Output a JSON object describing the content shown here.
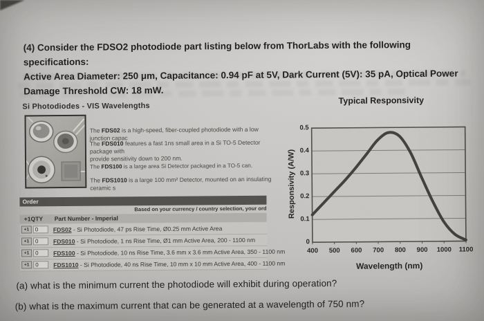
{
  "page": {
    "intro_lines": [
      "(4) Consider the FDSO2 photodiode part listing below from ThorLabs with the following specifications:",
      "Active Area Diameter: 250 μm, Capacitance: 0.94 pF at 5V, Dark Current (5V): 35 pA, Optical Power",
      "Damage Threshold CW: 18 mW."
    ],
    "questions": {
      "a": "(a) what is the minimum current the photodiode will exhibit during operation?",
      "b": "(b) what is the maximum current that can be generated at a wavelength of 750 nm?"
    }
  },
  "listing": {
    "heading": "Si Photodiodes - VIS Wavelengths",
    "descriptions": [
      {
        "pre": "The ",
        "part": "FDS02",
        "rest": " is a high-speed, fiber-coupled photodiode with a low junction capac",
        "line2": ""
      },
      {
        "pre": "The ",
        "part": "FDS010",
        "rest": " features a fast 1ns small area in a Si TO-5 Detector package with",
        "line2": "provide sensitivity down to 200 nm."
      },
      {
        "pre": "The ",
        "part": "FDS100",
        "rest": " is a large area Si Detector packaged in a TO-5 can.",
        "line2": ""
      },
      {
        "pre": "The ",
        "part": "FDS1010",
        "rest": " is a large 100 mm² Detector, mounted on an insulating ceramic s",
        "line2": ""
      }
    ]
  },
  "order": {
    "bar_label": "Order",
    "currency_note": "Based on your currency / country selection, your ord",
    "col_qty": "+1QTY",
    "col_part": "Part Number - Imperial",
    "cart_icon_label": "+1",
    "rows": [
      {
        "qty": "0",
        "part": "FDS02",
        "desc": " - Si Photodiode, 47 ps Rise Time, Ø0.25 mm Active Area"
      },
      {
        "qty": "0",
        "part": "FDS010",
        "desc": " - Si Photodiode, 1 ns Rise Time, Ø1 mm Active Area, 200 - 1100 nm"
      },
      {
        "qty": "0",
        "part": "FDS100",
        "desc": " - Si Photodiode, 10 ns Rise Time, 3.6 mm x 3.6 mm Active Area, 350 - 1100 nm"
      },
      {
        "qty": "0",
        "part": "FDS1010",
        "desc": " - Si Photodiode, 40 ns Rise Time, 10 mm x 10 mm Active Area, 400 - 1100 nm"
      }
    ]
  },
  "chart_data": {
    "type": "line",
    "title": "Typical Responsivity",
    "xlabel": "Wavelength (nm)",
    "ylabel": "Responsivity (A/W)",
    "xlim": [
      400,
      1100
    ],
    "ylim": [
      0,
      0.5
    ],
    "xticks": [
      400,
      500,
      600,
      700,
      800,
      900,
      1000,
      1100
    ],
    "yticks": [
      0,
      0.1,
      0.2,
      0.3,
      0.4,
      0.5
    ],
    "grid": "horizontal",
    "legend": "none",
    "x": [
      400,
      450,
      500,
      550,
      600,
      650,
      700,
      750,
      800,
      850,
      900,
      950,
      1000,
      1050,
      1100
    ],
    "y": [
      0.12,
      0.17,
      0.22,
      0.27,
      0.325,
      0.385,
      0.445,
      0.478,
      0.462,
      0.39,
      0.28,
      0.175,
      0.085,
      0.03,
      0.005
    ],
    "line_color": "#413f3c",
    "plot_bg": "#c7c6c2",
    "grid_color": "#7c7b77",
    "border_color": "#4c4b47"
  }
}
